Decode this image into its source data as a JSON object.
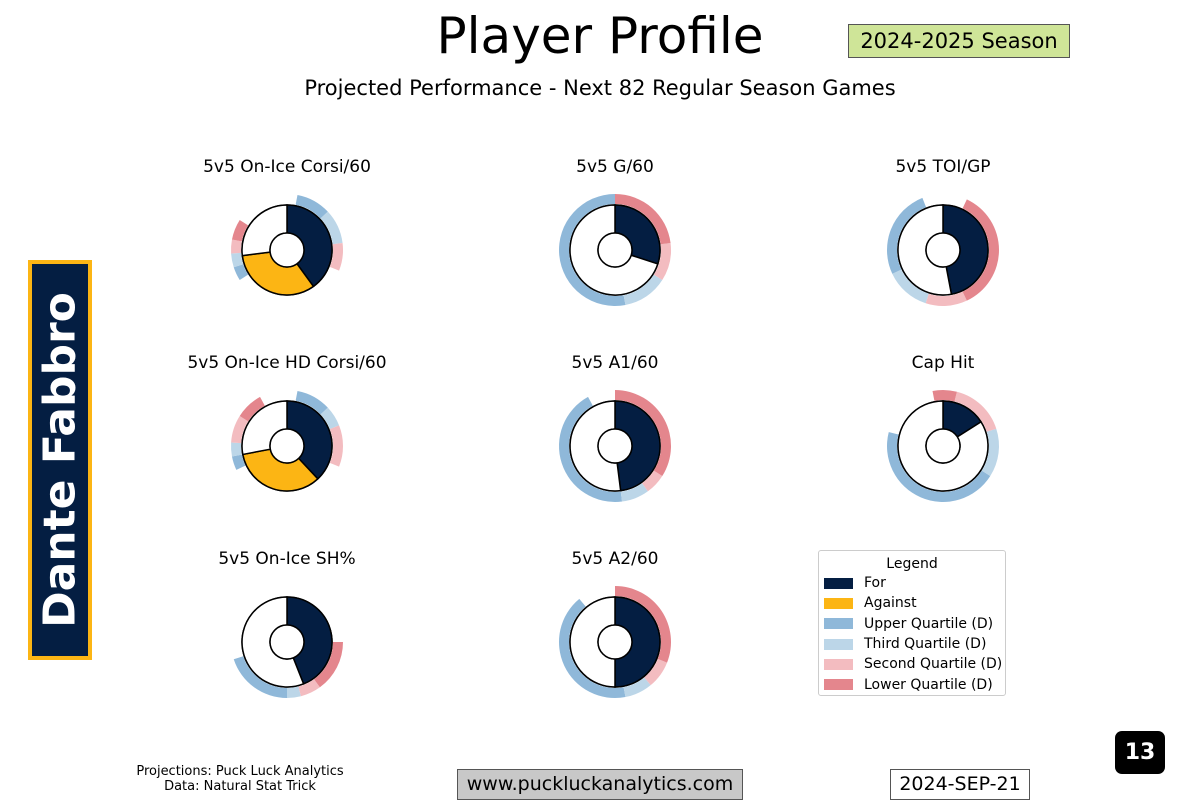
{
  "header": {
    "title": "Player Profile",
    "season": "2024-2025 Season",
    "subtitle": "Projected Performance - Next 82 Regular Season Games"
  },
  "player": {
    "name": "Dante Fabbro"
  },
  "colors": {
    "for": "#041e42",
    "against": "#fcb514",
    "upper_quartile": "#8fb8d9",
    "third_quartile": "#bcd6e8",
    "second_quartile": "#f3bcc0",
    "lower_quartile": "#e4868d",
    "name_box_fill": "#041e42",
    "name_box_border": "#fcb514",
    "season_badge": "#cfe598"
  },
  "chart_data": [
    {
      "type": "pie",
      "title": "5v5 On-Ice Corsi/60",
      "inner": {
        "for": 0.4,
        "against": 0.33
      },
      "outer": {
        "upper": [
          [
            0.03,
            0.13
          ],
          [
            0.66,
            0.7
          ]
        ],
        "third": [
          [
            0.13,
            0.23
          ],
          [
            0.7,
            0.74
          ]
        ],
        "second": [
          [
            0.23,
            0.31
          ],
          [
            0.74,
            0.78
          ]
        ],
        "lower": [
          [
            0.78,
            0.84
          ]
        ]
      }
    },
    {
      "type": "pie",
      "title": "5v5 G/60",
      "inner": {
        "for": 0.3,
        "against": null
      },
      "outer": {
        "lower": [
          [
            0.0,
            0.23
          ]
        ],
        "second": [
          [
            0.23,
            0.34
          ]
        ],
        "third": [
          [
            0.34,
            0.47
          ]
        ],
        "upper": [
          [
            0.47,
            1.0
          ]
        ]
      }
    },
    {
      "type": "pie",
      "title": "5v5 TOI/GP",
      "inner": {
        "for": 0.47,
        "against": null
      },
      "outer": {
        "lower": [
          [
            0.07,
            0.43
          ]
        ],
        "second": [
          [
            0.43,
            0.55
          ]
        ],
        "third": [
          [
            0.55,
            0.68
          ]
        ],
        "upper": [
          [
            0.68,
            0.94
          ]
        ]
      }
    },
    {
      "type": "pie",
      "title": "5v5 On-Ice HD Corsi/60",
      "inner": {
        "for": 0.38,
        "against": 0.34
      },
      "outer": {
        "upper": [
          [
            0.03,
            0.13
          ],
          [
            0.68,
            0.72
          ]
        ],
        "third": [
          [
            0.13,
            0.19
          ],
          [
            0.72,
            0.76
          ]
        ],
        "second": [
          [
            0.19,
            0.31
          ],
          [
            0.76,
            0.84
          ]
        ],
        "lower": [
          [
            0.84,
            0.92
          ]
        ]
      }
    },
    {
      "type": "pie",
      "title": "5v5 A1/60",
      "inner": {
        "for": 0.48,
        "against": null
      },
      "outer": {
        "lower": [
          [
            0.0,
            0.34
          ]
        ],
        "second": [
          [
            0.34,
            0.4
          ]
        ],
        "third": [
          [
            0.4,
            0.48
          ]
        ],
        "upper": [
          [
            0.48,
            0.92
          ]
        ]
      }
    },
    {
      "type": "pie",
      "title": "Cap Hit",
      "inner": {
        "for": 0.16,
        "against": null
      },
      "outer": {
        "lower": [
          [
            0.97,
            1.04
          ]
        ],
        "second": [
          [
            0.04,
            0.2
          ]
        ],
        "third": [
          [
            0.2,
            0.34
          ]
        ],
        "upper": [
          [
            0.34,
            0.79
          ]
        ]
      }
    },
    {
      "type": "pie",
      "title": "5v5 On-Ice SH%",
      "inner": {
        "for": 0.44,
        "against": null
      },
      "outer": {
        "lower": [
          [
            0.25,
            0.4
          ]
        ],
        "second": [
          [
            0.4,
            0.46
          ]
        ],
        "third": [
          [
            0.46,
            0.5
          ]
        ],
        "upper": [
          [
            0.5,
            0.7
          ]
        ]
      }
    },
    {
      "type": "pie",
      "title": "5v5 A2/60",
      "inner": {
        "for": 0.5,
        "against": null
      },
      "outer": {
        "lower": [
          [
            0.0,
            0.31
          ]
        ],
        "second": [
          [
            0.31,
            0.39
          ]
        ],
        "third": [
          [
            0.39,
            0.47
          ]
        ],
        "upper": [
          [
            0.47,
            0.89
          ]
        ]
      }
    }
  ],
  "legend": {
    "title": "Legend",
    "items": [
      {
        "label": "For",
        "color": "#041e42"
      },
      {
        "label": "Against",
        "color": "#fcb514"
      },
      {
        "label": "Upper Quartile (D)",
        "color": "#8fb8d9"
      },
      {
        "label": "Third Quartile (D)",
        "color": "#bcd6e8"
      },
      {
        "label": "Second Quartile (D)",
        "color": "#f3bcc0"
      },
      {
        "label": "Lower Quartile (D)",
        "color": "#e4868d"
      }
    ]
  },
  "footer": {
    "credits_line1": "Projections: Puck Luck Analytics",
    "credits_line2": "Data: Natural Stat Trick",
    "website": "www.puckluckanalytics.com",
    "date": "2024-SEP-21",
    "page_number": "13"
  }
}
